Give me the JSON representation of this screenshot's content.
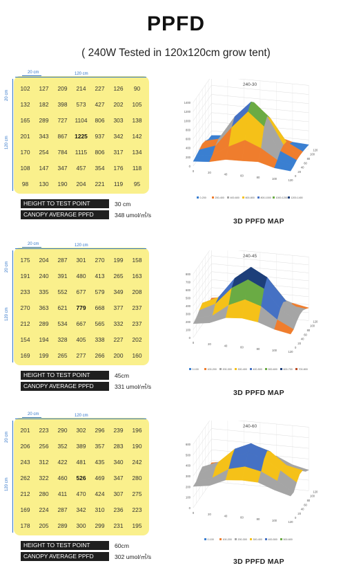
{
  "title": "PPFD",
  "subtitle": "( 240W Tested in 120x120cm grow tent)",
  "dim_labels": {
    "small": "20 cm",
    "width": "120 cm",
    "height": "120 cm"
  },
  "labels": {
    "height_label": "HEIGHT TO TEST POINT",
    "canopy_label": "CANOPY AVERAGE PPFD",
    "map_title": "3D PPFD MAP"
  },
  "colors": {
    "grid_bg": "#faf08c",
    "label_bg": "#1f1f1f",
    "dim_color": "#2e73c8"
  },
  "sections": [
    {
      "height_value": "30 cm",
      "canopy_value": "348 umol/㎡/s",
      "chart_title": "240-30",
      "grid": [
        [
          "102",
          "127",
          "209",
          "214",
          "227",
          "126",
          "90"
        ],
        [
          "132",
          "182",
          "398",
          "573",
          "427",
          "202",
          "105"
        ],
        [
          "165",
          "289",
          "727",
          "1104",
          "806",
          "303",
          "138"
        ],
        [
          "201",
          "343",
          "867",
          "1225",
          "937",
          "342",
          "142"
        ],
        [
          "170",
          "254",
          "784",
          "1115",
          "806",
          "317",
          "134"
        ],
        [
          "108",
          "147",
          "347",
          "457",
          "354",
          "176",
          "118"
        ],
        [
          "98",
          "130",
          "190",
          "204",
          "221",
          "119",
          "95"
        ]
      ],
      "z_ticks": [
        "0",
        "200",
        "400",
        "600",
        "800",
        "1000",
        "1200",
        "1400"
      ],
      "x_ticks": [
        "0",
        "20",
        "40",
        "60",
        "80",
        "100",
        "120"
      ],
      "y_ticks": [
        "0",
        "20",
        "40",
        "60",
        "80",
        "100",
        "120"
      ],
      "legend": [
        "0-200",
        "200-400",
        "400-600",
        "600-800",
        "800-1000",
        "1000-1200",
        "1200-1400"
      ],
      "band_colors": [
        "#3a7fd1",
        "#ef7d2d",
        "#a5a5a5",
        "#f5c118",
        "#4571c4",
        "#6aab44",
        "#1d3f7a"
      ]
    },
    {
      "height_value": "45cm",
      "canopy_value": "331 umol/㎡/s",
      "chart_title": "240-45",
      "grid": [
        [
          "175",
          "204",
          "287",
          "301",
          "270",
          "199",
          "158"
        ],
        [
          "191",
          "240",
          "391",
          "480",
          "413",
          "265",
          "163"
        ],
        [
          "233",
          "335",
          "552",
          "677",
          "579",
          "349",
          "208"
        ],
        [
          "270",
          "363",
          "621",
          "779",
          "668",
          "377",
          "237"
        ],
        [
          "212",
          "289",
          "534",
          "667",
          "565",
          "332",
          "237"
        ],
        [
          "154",
          "194",
          "328",
          "405",
          "338",
          "227",
          "202"
        ],
        [
          "169",
          "199",
          "265",
          "277",
          "266",
          "200",
          "160"
        ]
      ],
      "z_ticks": [
        "0",
        "100",
        "200",
        "300",
        "400",
        "500",
        "600",
        "700",
        "800"
      ],
      "x_ticks": [
        "0",
        "20",
        "40",
        "60",
        "80",
        "100",
        "120"
      ],
      "y_ticks": [
        "0",
        "20",
        "40",
        "60",
        "80",
        "100",
        "120"
      ],
      "legend": [
        "0-100",
        "100-200",
        "200-300",
        "300-400",
        "400-500",
        "500-600",
        "600-700",
        "700-800"
      ],
      "band_colors": [
        "#3a7fd1",
        "#ef7d2d",
        "#a5a5a5",
        "#f5c118",
        "#4571c4",
        "#6aab44",
        "#1d3f7a",
        "#b94a24"
      ]
    },
    {
      "height_value": "60cm",
      "canopy_value": "302 umol/㎡/s",
      "chart_title": "240-60",
      "grid": [
        [
          "201",
          "223",
          "290",
          "302",
          "296",
          "239",
          "196"
        ],
        [
          "206",
          "256",
          "352",
          "389",
          "357",
          "283",
          "190"
        ],
        [
          "243",
          "312",
          "422",
          "481",
          "435",
          "340",
          "242"
        ],
        [
          "262",
          "322",
          "460",
          "526",
          "469",
          "347",
          "280"
        ],
        [
          "212",
          "280",
          "411",
          "470",
          "424",
          "307",
          "275"
        ],
        [
          "169",
          "224",
          "287",
          "342",
          "310",
          "236",
          "223"
        ],
        [
          "178",
          "205",
          "289",
          "300",
          "299",
          "231",
          "195"
        ]
      ],
      "z_ticks": [
        "0",
        "100",
        "200",
        "300",
        "400",
        "500",
        "600"
      ],
      "x_ticks": [
        "0",
        "20",
        "40",
        "60",
        "80",
        "100",
        "120"
      ],
      "y_ticks": [
        "0",
        "20",
        "40",
        "60",
        "80",
        "100",
        "120"
      ],
      "legend": [
        "0-100",
        "100-200",
        "200-300",
        "300-400",
        "400-500",
        "500-600"
      ],
      "band_colors": [
        "#3a7fd1",
        "#ef7d2d",
        "#a5a5a5",
        "#f5c118",
        "#4571c4",
        "#6aab44"
      ]
    }
  ],
  "chart_data": [
    {
      "type": "heatmap",
      "title": "240-30",
      "x": [
        "0",
        "20",
        "40",
        "60",
        "80",
        "100",
        "120"
      ],
      "y": [
        "0",
        "20",
        "40",
        "60",
        "80",
        "100",
        "120"
      ],
      "values": [
        [
          102,
          127,
          209,
          214,
          227,
          126,
          90
        ],
        [
          132,
          182,
          398,
          573,
          427,
          202,
          105
        ],
        [
          165,
          289,
          727,
          1104,
          806,
          303,
          138
        ],
        [
          201,
          343,
          867,
          1225,
          937,
          342,
          142
        ],
        [
          170,
          254,
          784,
          1115,
          806,
          317,
          134
        ],
        [
          108,
          147,
          347,
          457,
          354,
          176,
          118
        ],
        [
          98,
          130,
          190,
          204,
          221,
          119,
          95
        ]
      ],
      "zlim": [
        0,
        1400
      ]
    },
    {
      "type": "heatmap",
      "title": "240-45",
      "x": [
        "0",
        "20",
        "40",
        "60",
        "80",
        "100",
        "120"
      ],
      "y": [
        "0",
        "20",
        "40",
        "60",
        "80",
        "100",
        "120"
      ],
      "values": [
        [
          175,
          204,
          287,
          301,
          270,
          199,
          158
        ],
        [
          191,
          240,
          391,
          480,
          413,
          265,
          163
        ],
        [
          233,
          335,
          552,
          677,
          579,
          349,
          208
        ],
        [
          270,
          363,
          621,
          779,
          668,
          377,
          237
        ],
        [
          212,
          289,
          534,
          667,
          565,
          332,
          237
        ],
        [
          154,
          194,
          328,
          405,
          338,
          227,
          202
        ],
        [
          169,
          199,
          265,
          277,
          266,
          200,
          160
        ]
      ],
      "zlim": [
        0,
        800
      ]
    },
    {
      "type": "heatmap",
      "title": "240-60",
      "x": [
        "0",
        "20",
        "40",
        "60",
        "80",
        "100",
        "120"
      ],
      "y": [
        "0",
        "20",
        "40",
        "60",
        "80",
        "100",
        "120"
      ],
      "values": [
        [
          201,
          223,
          290,
          302,
          296,
          239,
          196
        ],
        [
          206,
          256,
          352,
          389,
          357,
          283,
          190
        ],
        [
          243,
          312,
          422,
          481,
          435,
          340,
          242
        ],
        [
          262,
          322,
          460,
          526,
          469,
          347,
          280
        ],
        [
          212,
          280,
          411,
          470,
          424,
          307,
          275
        ],
        [
          169,
          224,
          287,
          342,
          310,
          236,
          223
        ],
        [
          178,
          205,
          289,
          300,
          299,
          231,
          195
        ]
      ],
      "zlim": [
        0,
        600
      ]
    }
  ]
}
